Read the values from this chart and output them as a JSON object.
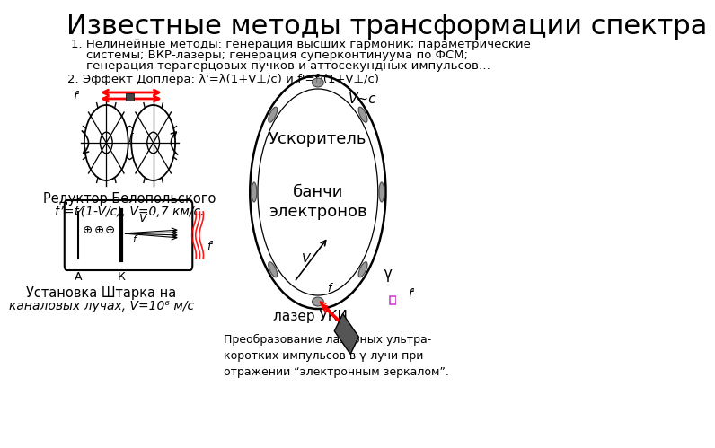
{
  "title": "Известные методы трансформации спектра",
  "title_fontsize": 22,
  "bg_color": "#ffffff",
  "text_color": "#000000",
  "line1": "1. Нелинейные методы: генерация высших гармоник; параметрические",
  "line2": "    системы; ВКР-лазеры; генерация суперконтинуума по ФСМ;",
  "line3": "    генерация терагерцовых пучков и аттосекундных импульсов…",
  "doppler_text": "2. Эффект Доплера: λ'=λ(1+V⊥/c) и f'=f/(1+V⊥/c)",
  "reduktor_label": "Редуктор Белопольского",
  "reduktor_formula": "f’=f⁄(1-V/c), V=0,7 км/с.",
  "shtark_label1": "Установка Штарка на",
  "shtark_label2": "каналовых лучах, V=10⁶ м/с",
  "laser_label": "лазер УКИ",
  "banchi_label": "банчи\nэлектронов",
  "uskor_label": "Ускоритель",
  "vc_label": "V~c",
  "preobr_label": "Преобразование лазерных ультра-\nкоротких импульсов в γ-лучи при\nотражении “электронным зеркалом”.",
  "body_fontsize": 9.5,
  "diagram_fontsize": 9
}
